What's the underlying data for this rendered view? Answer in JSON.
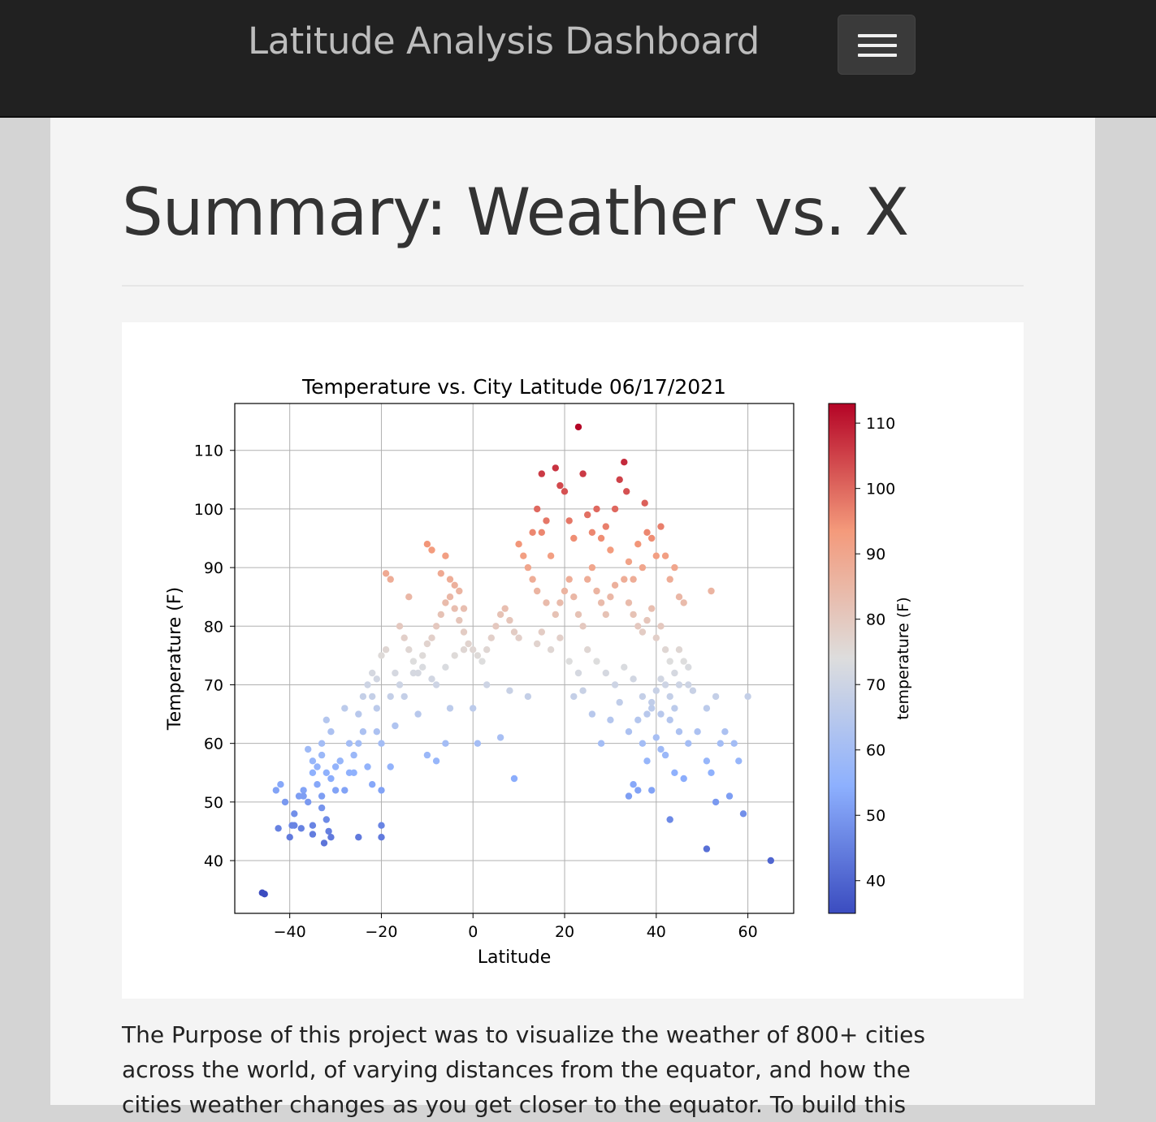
{
  "navbar": {
    "brand": "Latitude Analysis Dashboard",
    "toggle_icon": "hamburger-menu-icon"
  },
  "main": {
    "title": "Summary: Weather vs. X",
    "paragraph_lines": [
      "The Purpose of this project was to visualize the weather of 800+ cities",
      "across the world, of varying distances from the equator, and how the",
      "cities weather changes as you get closer to the equator. To build this"
    ]
  },
  "chart_data": {
    "type": "scatter",
    "title": "Temperature vs. City Latitude  06/17/2021",
    "xlabel": "Latitude",
    "ylabel": "Temperature (F)",
    "colorbar_label": "temperature (F)",
    "colormap": "coolwarm",
    "xlim": [
      -52,
      70
    ],
    "ylim": [
      31,
      118
    ],
    "color_range": [
      35,
      113
    ],
    "grid": true,
    "xticks": [
      -40,
      -20,
      0,
      20,
      40,
      60
    ],
    "yticks": [
      40,
      50,
      60,
      70,
      80,
      90,
      100,
      110
    ],
    "colorbar_ticks": [
      40,
      50,
      60,
      70,
      80,
      90,
      100,
      110
    ],
    "points": [
      [
        -46,
        34.5
      ],
      [
        -45.5,
        34.3
      ],
      [
        -43,
        52
      ],
      [
        -42,
        53
      ],
      [
        -41,
        50
      ],
      [
        -40,
        44
      ],
      [
        -39,
        48
      ],
      [
        -39.5,
        46
      ],
      [
        -38,
        51
      ],
      [
        -37,
        52
      ],
      [
        -36,
        50
      ],
      [
        -35,
        46
      ],
      [
        -35,
        44.5
      ],
      [
        -34,
        53
      ],
      [
        -33,
        51
      ],
      [
        -32.5,
        43
      ],
      [
        -32,
        47
      ],
      [
        -31.5,
        45
      ],
      [
        -31,
        44
      ],
      [
        -42.5,
        45.5
      ],
      [
        -39,
        46
      ],
      [
        -37.5,
        45.5
      ],
      [
        -35,
        55
      ],
      [
        -34,
        56
      ],
      [
        -33,
        58
      ],
      [
        -33,
        60
      ],
      [
        -32,
        64
      ],
      [
        -36,
        59
      ],
      [
        -35,
        57
      ],
      [
        -37,
        51
      ],
      [
        -33,
        49
      ],
      [
        -32,
        55
      ],
      [
        -31,
        54
      ],
      [
        -30,
        56
      ],
      [
        -29,
        57
      ],
      [
        -28,
        52
      ],
      [
        -27,
        55
      ],
      [
        -26,
        58
      ],
      [
        -25,
        60
      ],
      [
        -24,
        62
      ],
      [
        -23,
        56
      ],
      [
        -22,
        53
      ],
      [
        -21,
        62
      ],
      [
        -20,
        60
      ],
      [
        -25,
        65
      ],
      [
        -24,
        68
      ],
      [
        -23,
        70
      ],
      [
        -22,
        72
      ],
      [
        -21,
        66
      ],
      [
        -20,
        75
      ],
      [
        -19,
        76
      ],
      [
        -18,
        68
      ],
      [
        -17,
        63
      ],
      [
        -18,
        56
      ],
      [
        -20,
        52
      ],
      [
        -20,
        44
      ],
      [
        -25,
        44
      ],
      [
        -20,
        46
      ],
      [
        -29,
        57
      ],
      [
        -31,
        62
      ],
      [
        -28,
        66
      ],
      [
        -27,
        60
      ],
      [
        -26,
        55
      ],
      [
        -30,
        52
      ],
      [
        -16,
        80
      ],
      [
        -15,
        78
      ],
      [
        -14,
        76
      ],
      [
        -13,
        74
      ],
      [
        -12,
        72
      ],
      [
        -11,
        75
      ],
      [
        -10,
        77
      ],
      [
        -9,
        78
      ],
      [
        -8,
        80
      ],
      [
        -7,
        82
      ],
      [
        -6,
        84
      ],
      [
        -5,
        85
      ],
      [
        -4,
        83
      ],
      [
        -3,
        81
      ],
      [
        -2,
        79
      ],
      [
        -1,
        77
      ],
      [
        0,
        76
      ],
      [
        1,
        75
      ],
      [
        2,
        74
      ],
      [
        3,
        76
      ],
      [
        4,
        78
      ],
      [
        5,
        80
      ],
      [
        6,
        82
      ],
      [
        7,
        83
      ],
      [
        8,
        81
      ],
      [
        9,
        79
      ],
      [
        10,
        78
      ],
      [
        -19,
        89
      ],
      [
        -18,
        88
      ],
      [
        -14,
        85
      ],
      [
        -10,
        94
      ],
      [
        -9,
        93
      ],
      [
        -7,
        89
      ],
      [
        -6,
        92
      ],
      [
        -5,
        88
      ],
      [
        -4,
        87
      ],
      [
        -3,
        86
      ],
      [
        -2,
        83
      ],
      [
        -12,
        65
      ],
      [
        -10,
        58
      ],
      [
        -8,
        57
      ],
      [
        -6,
        60
      ],
      [
        -5,
        66
      ],
      [
        0,
        66
      ],
      [
        1,
        60
      ],
      [
        3,
        70
      ],
      [
        6,
        61
      ],
      [
        8,
        69
      ],
      [
        9,
        54
      ],
      [
        12,
        68
      ],
      [
        10,
        94
      ],
      [
        11,
        92
      ],
      [
        12,
        90
      ],
      [
        13,
        96
      ],
      [
        14,
        100
      ],
      [
        15,
        106
      ],
      [
        15,
        96
      ],
      [
        16,
        98
      ],
      [
        17,
        92
      ],
      [
        18,
        107
      ],
      [
        19,
        104
      ],
      [
        20,
        103
      ],
      [
        21,
        98
      ],
      [
        22,
        95
      ],
      [
        23,
        114
      ],
      [
        24,
        106
      ],
      [
        25,
        99
      ],
      [
        26,
        96
      ],
      [
        27,
        100
      ],
      [
        28,
        95
      ],
      [
        29,
        97
      ],
      [
        30,
        93
      ],
      [
        31,
        100
      ],
      [
        32,
        105
      ],
      [
        33,
        108
      ],
      [
        33.5,
        103
      ],
      [
        34,
        91
      ],
      [
        35,
        88
      ],
      [
        36,
        94
      ],
      [
        37,
        90
      ],
      [
        37.5,
        101
      ],
      [
        38,
        96
      ],
      [
        39,
        95
      ],
      [
        40,
        92
      ],
      [
        41,
        97
      ],
      [
        42,
        92
      ],
      [
        43,
        88
      ],
      [
        44,
        90
      ],
      [
        45,
        85
      ],
      [
        46,
        84
      ],
      [
        13,
        88
      ],
      [
        14,
        86
      ],
      [
        16,
        84
      ],
      [
        18,
        82
      ],
      [
        19,
        84
      ],
      [
        20,
        86
      ],
      [
        21,
        88
      ],
      [
        22,
        85
      ],
      [
        23,
        82
      ],
      [
        24,
        80
      ],
      [
        25,
        88
      ],
      [
        26,
        90
      ],
      [
        27,
        86
      ],
      [
        28,
        84
      ],
      [
        29,
        82
      ],
      [
        30,
        85
      ],
      [
        31,
        87
      ],
      [
        33,
        88
      ],
      [
        34,
        84
      ],
      [
        35,
        82
      ],
      [
        36,
        80
      ],
      [
        37,
        79
      ],
      [
        38,
        81
      ],
      [
        39,
        83
      ],
      [
        40,
        78
      ],
      [
        41,
        80
      ],
      [
        42,
        76
      ],
      [
        43,
        74
      ],
      [
        44,
        72
      ],
      [
        45,
        76
      ],
      [
        46,
        74
      ],
      [
        47,
        73
      ],
      [
        14,
        77
      ],
      [
        15,
        79
      ],
      [
        17,
        76
      ],
      [
        19,
        78
      ],
      [
        21,
        74
      ],
      [
        23,
        72
      ],
      [
        25,
        76
      ],
      [
        27,
        74
      ],
      [
        29,
        72
      ],
      [
        31,
        70
      ],
      [
        33,
        73
      ],
      [
        35,
        71
      ],
      [
        37,
        68
      ],
      [
        39,
        66
      ],
      [
        41,
        65
      ],
      [
        43,
        64
      ],
      [
        45,
        62
      ],
      [
        47,
        60
      ],
      [
        49,
        62
      ],
      [
        51,
        57
      ],
      [
        52,
        55
      ],
      [
        53,
        50
      ],
      [
        56,
        51
      ],
      [
        58,
        57
      ],
      [
        59,
        48
      ],
      [
        60,
        68
      ],
      [
        65,
        40
      ],
      [
        51,
        42
      ],
      [
        43,
        47
      ],
      [
        44,
        55
      ],
      [
        46,
        54
      ],
      [
        40,
        61
      ],
      [
        41,
        59
      ],
      [
        42,
        58
      ],
      [
        38,
        57
      ],
      [
        39,
        52
      ],
      [
        36,
        52
      ],
      [
        35,
        53
      ],
      [
        34,
        51
      ],
      [
        37,
        60
      ],
      [
        38,
        65
      ],
      [
        39,
        67
      ],
      [
        40,
        69
      ],
      [
        41,
        71
      ],
      [
        42,
        70
      ],
      [
        43,
        68
      ],
      [
        44,
        66
      ],
      [
        45,
        70
      ],
      [
        47,
        70
      ],
      [
        48,
        69
      ],
      [
        52,
        86
      ],
      [
        51,
        66
      ],
      [
        54,
        60
      ],
      [
        55,
        62
      ],
      [
        57,
        60
      ],
      [
        53,
        68
      ],
      [
        22,
        68
      ],
      [
        24,
        69
      ],
      [
        26,
        65
      ],
      [
        28,
        60
      ],
      [
        30,
        64
      ],
      [
        32,
        67
      ],
      [
        34,
        62
      ],
      [
        36,
        64
      ],
      [
        -22,
        68
      ],
      [
        -21,
        71
      ],
      [
        -17,
        72
      ],
      [
        -16,
        70
      ],
      [
        -15,
        68
      ],
      [
        -13,
        72
      ],
      [
        -11,
        73
      ],
      [
        -9,
        71
      ],
      [
        -8,
        70
      ],
      [
        -6,
        73
      ],
      [
        -4,
        75
      ],
      [
        -2,
        76
      ]
    ]
  }
}
